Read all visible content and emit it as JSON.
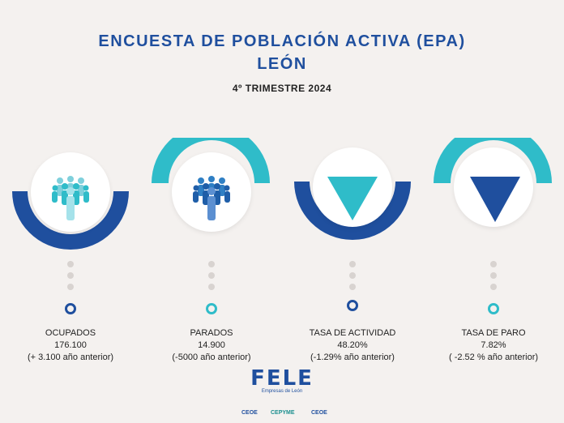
{
  "header": {
    "title_line1": "ENCUESTA DE POBLACIÓN ACTIVA (EPA)",
    "title_line2": "LEÓN",
    "subtitle": "4º TRIMESTRE 2024"
  },
  "cards": [
    {
      "name": "OCUPADOS",
      "value": "176.100",
      "change": "(+ 3.100 año anterior)",
      "icon": "people-group-icon"
    },
    {
      "name": "PARADOS",
      "value": "14.900",
      "change": "(-5000 año anterior)",
      "icon": "people-group-icon"
    },
    {
      "name": "TASA DE ACTIVIDAD",
      "value": "48.20%",
      "change": "(-1.29% año anterior)",
      "icon": "down-triangle-icon"
    },
    {
      "name": "TASA DE PARO",
      "value": "7.82%",
      "change": "( -2.52 % año anterior)",
      "icon": "down-triangle-icon"
    }
  ],
  "logo": {
    "text": "FELE",
    "subtext": "Empresas de León"
  },
  "footer_logos": [
    "CEOE",
    "CEPYME",
    "CEOE"
  ],
  "colors": {
    "dark_blue": "#1f4f9e",
    "teal": "#2fbcc9",
    "mid_blue": "#2f7fc4",
    "light_blue": "#7fd0dc"
  }
}
